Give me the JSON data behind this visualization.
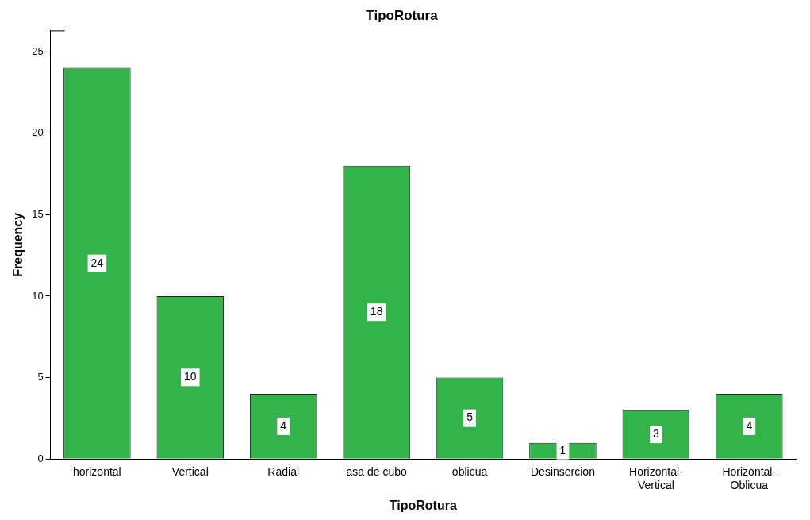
{
  "chart_data": {
    "type": "bar",
    "title": "TipoRotura",
    "xlabel": "TipoRotura",
    "ylabel": "Frequency",
    "categories": [
      "horizontal",
      "Vertical",
      "Radial",
      "asa de cubo",
      "oblicua",
      "Desinsercion",
      "Horizontal-Vertical",
      "Horizontal-Oblicua"
    ],
    "values": [
      24,
      10,
      4,
      18,
      5,
      1,
      3,
      4
    ],
    "color": "#33b44a",
    "ylim": [
      0,
      26.3
    ],
    "yticks": [
      0,
      5,
      10,
      15,
      20,
      25
    ],
    "grid": false,
    "legend": false,
    "data_labels": true
  }
}
